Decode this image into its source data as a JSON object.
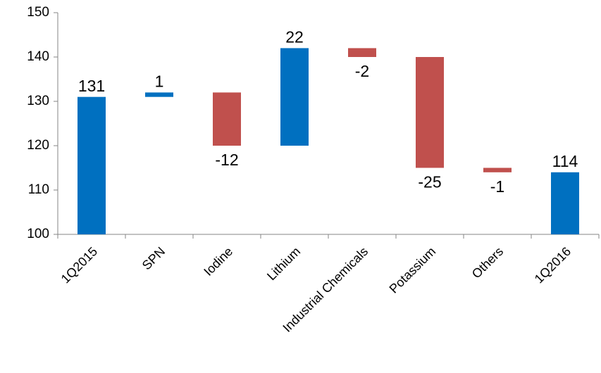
{
  "chart_data": {
    "type": "waterfall",
    "categories": [
      "1Q2015",
      "SPN",
      "Iodine",
      "Lithium",
      "Industrial Chemicals",
      "Potassium",
      "Others",
      "1Q2016"
    ],
    "values": [
      131,
      1,
      -12,
      22,
      -2,
      -25,
      -1,
      114
    ],
    "is_total": [
      true,
      false,
      false,
      false,
      false,
      false,
      false,
      true
    ],
    "increase_color": "#0070c0",
    "decrease_color": "#c0504d",
    "total_color": "#0070c0",
    "ylim": [
      100,
      150
    ],
    "yticks": [
      100,
      110,
      120,
      130,
      140,
      150
    ],
    "grid": false
  }
}
